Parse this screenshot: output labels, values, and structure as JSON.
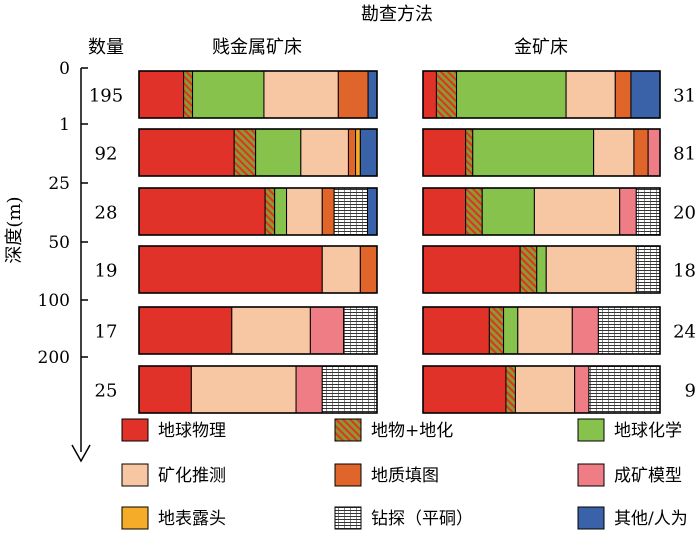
{
  "chart_data": {
    "type": "bar",
    "title": "勘查方法",
    "ylabel": "深度(m)",
    "count_header": "数量",
    "depth_ticks": [
      "0",
      "1",
      "25",
      "50",
      "100",
      "200"
    ],
    "panels": [
      {
        "title": "贱金属矿床",
        "counts": [
          "195",
          "92",
          "28",
          "19",
          "17",
          "25"
        ],
        "rows": [
          [
            15,
            3,
            24,
            25,
            10,
            0,
            0,
            0,
            3
          ],
          [
            40,
            9,
            19,
            20,
            3,
            0,
            2,
            0,
            7
          ],
          [
            53,
            4,
            5,
            15,
            5,
            0,
            0,
            14,
            4
          ],
          [
            77,
            0,
            0,
            16,
            7,
            0,
            0,
            0,
            0
          ],
          [
            39,
            0,
            0,
            33,
            0,
            14,
            0,
            14,
            0
          ],
          [
            22,
            0,
            0,
            44,
            0,
            11,
            0,
            23,
            0
          ]
        ]
      },
      {
        "title": "金矿床",
        "counts": [
          "31",
          "81",
          "20",
          "18",
          "24",
          "9"
        ],
        "rows": [
          [
            6,
            9,
            49,
            22,
            7,
            0,
            0,
            0,
            13
          ],
          [
            18,
            3,
            51,
            17,
            6,
            5,
            0,
            0,
            0
          ],
          [
            18,
            7,
            22,
            36,
            0,
            7,
            0,
            10,
            0
          ],
          [
            41,
            7,
            4,
            38,
            0,
            0,
            0,
            10,
            0
          ],
          [
            28,
            6,
            6,
            23,
            0,
            11,
            0,
            26,
            0
          ],
          [
            35,
            4,
            0,
            25,
            0,
            6,
            0,
            30,
            0
          ]
        ]
      }
    ],
    "legend": [
      {
        "label": "地球物理",
        "color": "#e03228",
        "pattern": "none"
      },
      {
        "label": "地物+地化",
        "color": "#8a9a2e",
        "pattern": "hatch"
      },
      {
        "label": "地球化学",
        "color": "#86c24c",
        "pattern": "none"
      },
      {
        "label": "矿化推测",
        "color": "#f7c6a3",
        "pattern": "none"
      },
      {
        "label": "地质填图",
        "color": "#e0652a",
        "pattern": "none"
      },
      {
        "label": "成矿模型",
        "color": "#ef7d85",
        "pattern": "none"
      },
      {
        "label": "地表露头",
        "color": "#f5ac28",
        "pattern": "none"
      },
      {
        "label": "钻探（平硐）",
        "color": "#ffffff",
        "pattern": "lines"
      },
      {
        "label": "其他/人为",
        "color": "#3a62a8",
        "pattern": "none"
      }
    ]
  }
}
